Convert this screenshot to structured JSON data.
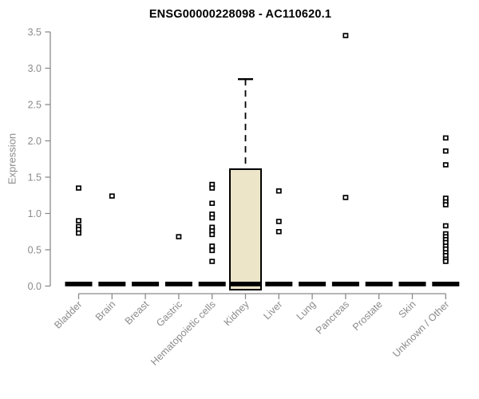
{
  "chart_data": {
    "type": "boxplot",
    "title": "ENSG00000228098 - AC110620.1",
    "ylabel": "Expression",
    "xlabel": "",
    "ylim": [
      0.0,
      3.5
    ],
    "yticks": [
      0.0,
      0.5,
      1.0,
      1.5,
      2.0,
      2.5,
      3.0,
      3.5
    ],
    "grid": false,
    "legend": "none",
    "categories": [
      "Bladder",
      "Brain",
      "Breast",
      "Gastric",
      "Hematopoietic cells",
      "Kidney",
      "Liver",
      "Lung",
      "Pancreas",
      "Prostate",
      "Skin",
      "Unknown / Other"
    ],
    "boxes": [
      {
        "category": "Bladder",
        "median": 0,
        "q1": 0,
        "q3": 0,
        "whisker_low": 0,
        "whisker_high": 0,
        "outliers": [
          1.35,
          0.9,
          0.82,
          0.78,
          0.73
        ]
      },
      {
        "category": "Brain",
        "median": 0,
        "q1": 0,
        "q3": 0,
        "whisker_low": 0,
        "whisker_high": 0,
        "outliers": [
          1.24
        ]
      },
      {
        "category": "Breast",
        "median": 0,
        "q1": 0,
        "q3": 0,
        "whisker_low": 0,
        "whisker_high": 0,
        "outliers": []
      },
      {
        "category": "Gastric",
        "median": 0,
        "q1": 0,
        "q3": 0,
        "whisker_low": 0,
        "whisker_high": 0,
        "outliers": [
          0.68
        ]
      },
      {
        "category": "Hematopoietic cells",
        "median": 0,
        "q1": 0,
        "q3": 0,
        "whisker_low": 0,
        "whisker_high": 0,
        "outliers": [
          1.4,
          1.35,
          1.14,
          0.99,
          0.94,
          0.81,
          0.76,
          0.71,
          0.55,
          0.49,
          0.34
        ]
      },
      {
        "category": "Kidney",
        "median": 0,
        "q1": 0,
        "q3": 1.61,
        "whisker_low": 0,
        "whisker_high": 2.85,
        "outliers": []
      },
      {
        "category": "Liver",
        "median": 0,
        "q1": 0,
        "q3": 0,
        "whisker_low": 0,
        "whisker_high": 0,
        "outliers": [
          1.31,
          0.89,
          0.75
        ]
      },
      {
        "category": "Lung",
        "median": 0,
        "q1": 0,
        "q3": 0,
        "whisker_low": 0,
        "whisker_high": 0,
        "outliers": []
      },
      {
        "category": "Pancreas",
        "median": 0,
        "q1": 0,
        "q3": 0,
        "whisker_low": 0,
        "whisker_high": 0,
        "outliers": [
          3.45,
          1.22
        ]
      },
      {
        "category": "Prostate",
        "median": 0,
        "q1": 0,
        "q3": 0,
        "whisker_low": 0,
        "whisker_high": 0,
        "outliers": []
      },
      {
        "category": "Skin",
        "median": 0,
        "q1": 0,
        "q3": 0,
        "whisker_low": 0,
        "whisker_high": 0,
        "outliers": []
      },
      {
        "category": "Unknown / Other",
        "median": 0,
        "q1": 0,
        "q3": 0,
        "whisker_low": 0,
        "whisker_high": 0,
        "outliers": [
          2.04,
          1.86,
          1.67,
          1.21,
          1.16,
          1.12,
          0.83,
          0.72,
          0.68,
          0.64,
          0.6,
          0.55,
          0.51,
          0.46,
          0.42,
          0.37,
          0.34
        ]
      }
    ],
    "style": {
      "box_fill": "#ece5c8",
      "box_border": "#000000",
      "zero_bar_color": "#000000",
      "marker": "open-square",
      "marker_color": "#000000",
      "whisker_style": "dashed",
      "axis_color": "#8b8b8b",
      "tick_label_color": "#8b8b8b",
      "title_color": "#000000",
      "background": "#ffffff"
    }
  }
}
